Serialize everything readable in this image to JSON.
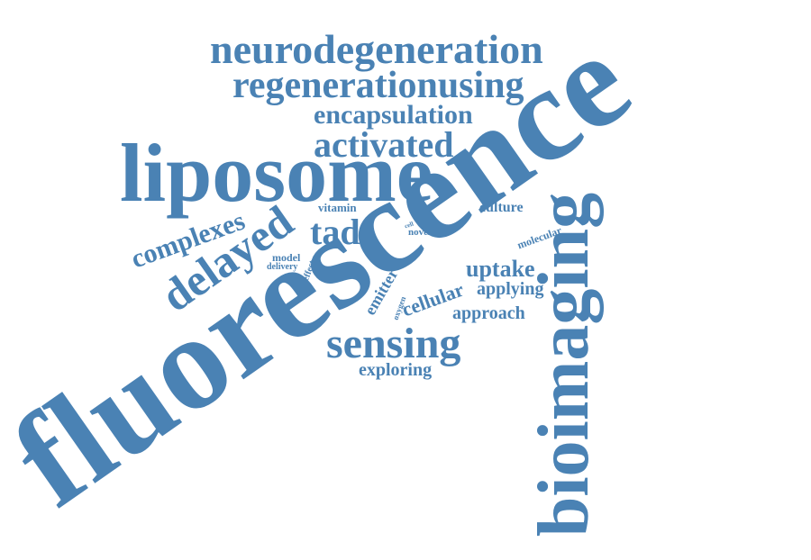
{
  "style": {
    "word_color": "#4a82b4",
    "background": "#ffffff"
  },
  "words": [
    {
      "text": "fluorescence",
      "rotation": -35
    },
    {
      "text": "bioimaging",
      "rotation": -90
    },
    {
      "text": "liposome",
      "rotation": 0
    },
    {
      "text": "neurodegeneration",
      "rotation": 0
    },
    {
      "text": "regenerationusing",
      "rotation": 0
    },
    {
      "text": "encapsulation",
      "rotation": 0
    },
    {
      "text": "activated",
      "rotation": 0
    },
    {
      "text": "sensing",
      "rotation": 0
    },
    {
      "text": "delayed",
      "rotation": -35
    },
    {
      "text": "complexes",
      "rotation": -20
    },
    {
      "text": "tadf",
      "rotation": 0
    },
    {
      "text": "uptake",
      "rotation": 0
    },
    {
      "text": "cellular",
      "rotation": -20
    },
    {
      "text": "applying",
      "rotation": 0
    },
    {
      "text": "approach",
      "rotation": 0
    },
    {
      "text": "exploring",
      "rotation": 0
    },
    {
      "text": "emitter",
      "rotation": -60
    },
    {
      "text": "culture",
      "rotation": 0
    },
    {
      "text": "vitamin",
      "rotation": 0
    },
    {
      "text": "molecular",
      "rotation": -20
    },
    {
      "text": "novel",
      "rotation": 0
    },
    {
      "text": "model",
      "rotation": 0
    },
    {
      "text": "delivery",
      "rotation": 0
    },
    {
      "text": "effect",
      "rotation": -70
    },
    {
      "text": "oxygen",
      "rotation": -70
    },
    {
      "text": "cell",
      "rotation": -20
    }
  ]
}
